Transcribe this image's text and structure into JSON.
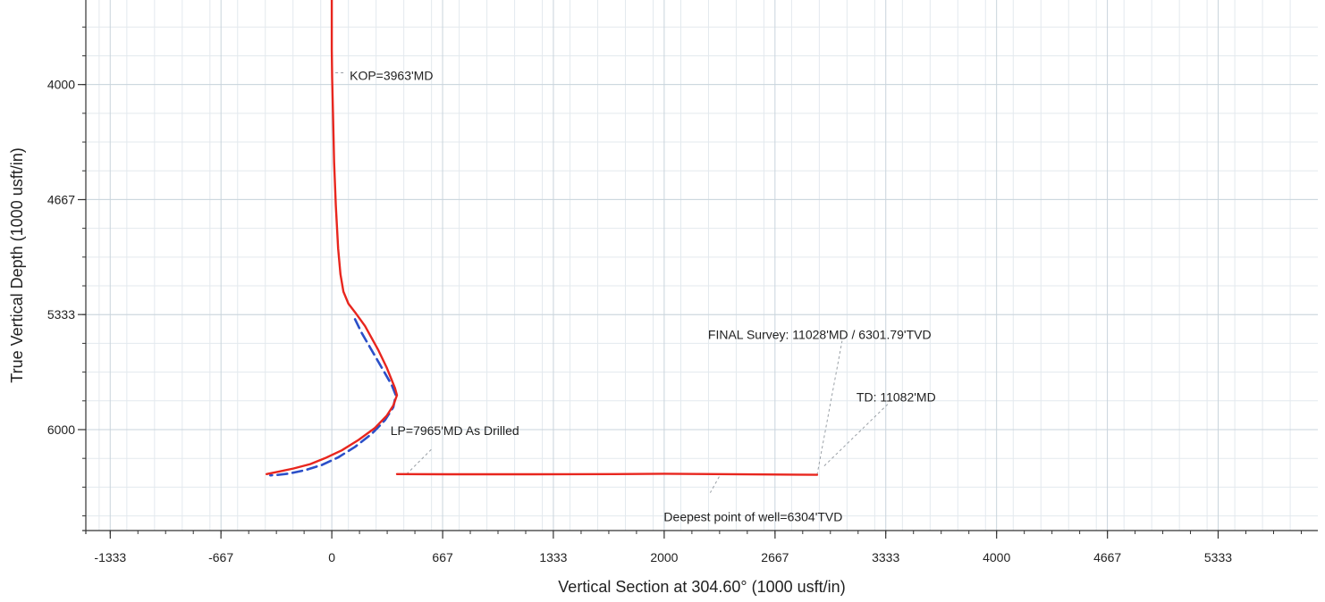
{
  "chart_data": {
    "type": "line",
    "xlabel": "Vertical Section at 304.60° (1000 usft/in)",
    "ylabel": "True Vertical Depth (1000 usft/in)",
    "x_ticks": [
      "-1333",
      "-667",
      "0",
      "667",
      "1333",
      "2000",
      "2667",
      "3333",
      "4000",
      "4667",
      "5333"
    ],
    "y_ticks": [
      "4000",
      "4667",
      "5333",
      "6000"
    ],
    "xlim": [
      -1480,
      5933
    ],
    "ylim": [
      3510,
      6585
    ],
    "y_inverted": true,
    "grid": true,
    "colors": {
      "actual": "#e8261e",
      "plan": "#2b4fc8"
    },
    "series": [
      {
        "line_style": "solid",
        "color": "#e8261e",
        "x": [
          0,
          0,
          2,
          8,
          14,
          24,
          38,
          52,
          70,
          100,
          140,
          200,
          280,
          330,
          380,
          392,
          370,
          330,
          260,
          160,
          60,
          -40,
          -130,
          -230,
          -320,
          -380,
          -392
        ],
        "y": [
          3510,
          3800,
          3963,
          4200,
          4450,
          4700,
          4950,
          5100,
          5200,
          5270,
          5320,
          5400,
          5540,
          5640,
          5760,
          5800,
          5860,
          5920,
          5990,
          6060,
          6120,
          6165,
          6200,
          6225,
          6244,
          6255,
          6258
        ]
      },
      {
        "line_style": "solid",
        "color": "#e8261e",
        "x": [
          392,
          700,
          1200,
          1700,
          2000,
          2300,
          2600,
          2920
        ],
        "y": [
          6258,
          6259,
          6259,
          6258,
          6256,
          6258,
          6260,
          6262
        ]
      },
      {
        "line_style": "dashed",
        "color": "#2b4fc8",
        "x": [
          140,
          180,
          240,
          300,
          360,
          385,
          370,
          320,
          240,
          140,
          40,
          -60,
          -160,
          -260,
          -330,
          -370
        ],
        "y": [
          5360,
          5440,
          5540,
          5640,
          5740,
          5800,
          5870,
          5945,
          6025,
          6100,
          6160,
          6205,
          6235,
          6255,
          6263,
          6265
        ]
      }
    ],
    "annotations": [
      {
        "text": "KOP=3963'MD",
        "x": 0,
        "y": 3963
      },
      {
        "text": "LP=7965'MD As Drilled",
        "x": 450,
        "y": 6258
      },
      {
        "text": "FINAL Survey: 11028'MD / 6301.79'TVD",
        "x": 2920,
        "y": 6262
      },
      {
        "text": "TD: 11082'MD",
        "x": 2920,
        "y": 6262
      },
      {
        "text": "Deepest point of well=6304'TVD",
        "x": 2600,
        "y": 6262
      }
    ]
  }
}
